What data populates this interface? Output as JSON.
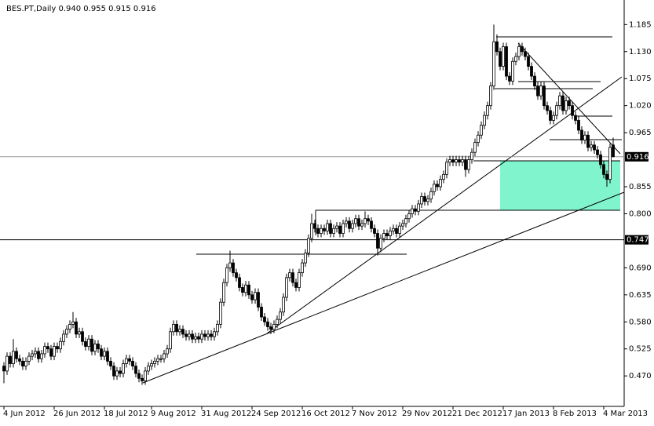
{
  "chart_data": {
    "type": "candlestick",
    "title": "BES.PT,Daily  0.940 0.955 0.915 0.916",
    "up_color": "#ffffff",
    "down_color": "#000000",
    "ylim": [
      0.408,
      1.235
    ],
    "yticks": [
      1.185,
      {
        "value": 1.13,
        "label": "1.130"
      },
      1.075,
      {
        "value": 1.02,
        "label": "1.020"
      },
      0.965,
      0.855,
      {
        "value": 0.8,
        "label": "0.800"
      },
      {
        "value": 0.69,
        "label": "0.690"
      },
      0.635,
      {
        "value": 0.58,
        "label": "0.580"
      },
      0.525,
      {
        "value": 0.47,
        "label": "0.470"
      }
    ],
    "xticks": [
      {
        "value": 0,
        "label": "4 Jun 2012"
      },
      {
        "value": 16,
        "label": "26 Jun 2012"
      },
      {
        "value": 32,
        "label": "18 Jul 2012"
      },
      {
        "value": 47,
        "label": "9 Aug 2012"
      },
      {
        "value": 63,
        "label": "31 Aug 2012"
      },
      {
        "value": 79,
        "label": "24 Sep 2012"
      },
      {
        "value": 95,
        "label": "16 Oct 2012"
      },
      {
        "value": 111,
        "label": "7 Nov 2012"
      },
      {
        "value": 127,
        "label": "29 Nov 2012"
      },
      {
        "value": 143,
        "label": "21 Dec 2012"
      },
      {
        "value": 159,
        "label": "17 Jan 2013"
      },
      {
        "value": 175,
        "label": "8 Feb 2013"
      },
      {
        "value": 191,
        "label": "4 Mar 2013"
      }
    ],
    "price_lines": [
      0.747
    ],
    "bid": 0.916,
    "ohlc": [
      [
        0.49,
        0.498,
        0.455,
        0.48
      ],
      [
        0.48,
        0.518,
        0.472,
        0.51
      ],
      [
        0.51,
        0.518,
        0.487,
        0.495
      ],
      [
        0.495,
        0.545,
        0.487,
        0.52
      ],
      [
        0.52,
        0.528,
        0.497,
        0.505
      ],
      [
        0.505,
        0.513,
        0.492,
        0.5
      ],
      [
        0.5,
        0.508,
        0.482,
        0.49
      ],
      [
        0.49,
        0.508,
        0.482,
        0.5
      ],
      [
        0.5,
        0.518,
        0.492,
        0.51
      ],
      [
        0.51,
        0.523,
        0.502,
        0.515
      ],
      [
        0.515,
        0.528,
        0.507,
        0.52
      ],
      [
        0.52,
        0.528,
        0.497,
        0.505
      ],
      [
        0.505,
        0.523,
        0.497,
        0.515
      ],
      [
        0.515,
        0.538,
        0.507,
        0.53
      ],
      [
        0.53,
        0.538,
        0.517,
        0.525
      ],
      [
        0.525,
        0.533,
        0.502,
        0.51
      ],
      [
        0.51,
        0.538,
        0.502,
        0.53
      ],
      [
        0.53,
        0.538,
        0.517,
        0.525
      ],
      [
        0.525,
        0.548,
        0.517,
        0.54
      ],
      [
        0.54,
        0.563,
        0.532,
        0.555
      ],
      [
        0.555,
        0.573,
        0.547,
        0.565
      ],
      [
        0.565,
        0.583,
        0.557,
        0.575
      ],
      [
        0.575,
        0.6,
        0.567,
        0.58
      ],
      [
        0.58,
        0.588,
        0.547,
        0.555
      ],
      [
        0.555,
        0.568,
        0.547,
        0.56
      ],
      [
        0.56,
        0.568,
        0.532,
        0.54
      ],
      [
        0.54,
        0.548,
        0.522,
        0.53
      ],
      [
        0.53,
        0.553,
        0.522,
        0.545
      ],
      [
        0.545,
        0.553,
        0.512,
        0.52
      ],
      [
        0.52,
        0.543,
        0.512,
        0.535
      ],
      [
        0.535,
        0.543,
        0.517,
        0.525
      ],
      [
        0.525,
        0.533,
        0.502,
        0.51
      ],
      [
        0.51,
        0.528,
        0.502,
        0.52
      ],
      [
        0.52,
        0.528,
        0.492,
        0.5
      ],
      [
        0.5,
        0.508,
        0.482,
        0.49
      ],
      [
        0.49,
        0.498,
        0.462,
        0.47
      ],
      [
        0.47,
        0.488,
        0.462,
        0.48
      ],
      [
        0.48,
        0.488,
        0.467,
        0.475
      ],
      [
        0.475,
        0.503,
        0.467,
        0.495
      ],
      [
        0.495,
        0.513,
        0.487,
        0.505
      ],
      [
        0.505,
        0.513,
        0.492,
        0.5
      ],
      [
        0.5,
        0.508,
        0.482,
        0.49
      ],
      [
        0.49,
        0.498,
        0.467,
        0.475
      ],
      [
        0.475,
        0.483,
        0.457,
        0.465
      ],
      [
        0.465,
        0.473,
        0.452,
        0.46
      ],
      [
        0.46,
        0.488,
        0.452,
        0.48
      ],
      [
        0.48,
        0.498,
        0.472,
        0.49
      ],
      [
        0.49,
        0.503,
        0.482,
        0.495
      ],
      [
        0.495,
        0.508,
        0.487,
        0.5
      ],
      [
        0.5,
        0.513,
        0.492,
        0.505
      ],
      [
        0.505,
        0.513,
        0.497,
        0.505
      ],
      [
        0.505,
        0.523,
        0.497,
        0.515
      ],
      [
        0.515,
        0.533,
        0.507,
        0.525
      ],
      [
        0.525,
        0.568,
        0.517,
        0.56
      ],
      [
        0.56,
        0.583,
        0.552,
        0.575
      ],
      [
        0.575,
        0.583,
        0.552,
        0.56
      ],
      [
        0.56,
        0.573,
        0.552,
        0.565
      ],
      [
        0.565,
        0.573,
        0.547,
        0.555
      ],
      [
        0.555,
        0.563,
        0.542,
        0.55
      ],
      [
        0.55,
        0.563,
        0.542,
        0.555
      ],
      [
        0.555,
        0.563,
        0.537,
        0.545
      ],
      [
        0.545,
        0.558,
        0.537,
        0.55
      ],
      [
        0.55,
        0.558,
        0.537,
        0.545
      ],
      [
        0.545,
        0.563,
        0.537,
        0.555
      ],
      [
        0.555,
        0.563,
        0.542,
        0.55
      ],
      [
        0.55,
        0.563,
        0.542,
        0.555
      ],
      [
        0.555,
        0.563,
        0.542,
        0.55
      ],
      [
        0.55,
        0.568,
        0.542,
        0.56
      ],
      [
        0.56,
        0.583,
        0.552,
        0.575
      ],
      [
        0.575,
        0.628,
        0.567,
        0.62
      ],
      [
        0.62,
        0.668,
        0.612,
        0.66
      ],
      [
        0.66,
        0.698,
        0.652,
        0.69
      ],
      [
        0.69,
        0.725,
        0.682,
        0.7
      ],
      [
        0.7,
        0.708,
        0.672,
        0.68
      ],
      [
        0.68,
        0.688,
        0.662,
        0.67
      ],
      [
        0.67,
        0.678,
        0.642,
        0.65
      ],
      [
        0.65,
        0.658,
        0.632,
        0.64
      ],
      [
        0.64,
        0.663,
        0.632,
        0.655
      ],
      [
        0.655,
        0.663,
        0.627,
        0.635
      ],
      [
        0.635,
        0.643,
        0.617,
        0.625
      ],
      [
        0.625,
        0.648,
        0.617,
        0.64
      ],
      [
        0.64,
        0.648,
        0.602,
        0.61
      ],
      [
        0.61,
        0.618,
        0.582,
        0.59
      ],
      [
        0.59,
        0.598,
        0.572,
        0.58
      ],
      [
        0.58,
        0.588,
        0.562,
        0.57
      ],
      [
        0.57,
        0.578,
        0.555,
        0.565
      ],
      [
        0.565,
        0.583,
        0.557,
        0.575
      ],
      [
        0.575,
        0.593,
        0.567,
        0.585
      ],
      [
        0.585,
        0.608,
        0.577,
        0.6
      ],
      [
        0.6,
        0.638,
        0.592,
        0.63
      ],
      [
        0.63,
        0.678,
        0.622,
        0.67
      ],
      [
        0.67,
        0.688,
        0.662,
        0.68
      ],
      [
        0.68,
        0.688,
        0.652,
        0.66
      ],
      [
        0.66,
        0.668,
        0.642,
        0.65
      ],
      [
        0.65,
        0.688,
        0.642,
        0.68
      ],
      [
        0.68,
        0.708,
        0.672,
        0.7
      ],
      [
        0.7,
        0.728,
        0.692,
        0.72
      ],
      [
        0.72,
        0.758,
        0.712,
        0.75
      ],
      [
        0.75,
        0.8,
        0.742,
        0.78
      ],
      [
        0.78,
        0.788,
        0.762,
        0.77
      ],
      [
        0.77,
        0.778,
        0.752,
        0.76
      ],
      [
        0.76,
        0.778,
        0.752,
        0.77
      ],
      [
        0.77,
        0.778,
        0.757,
        0.765
      ],
      [
        0.765,
        0.788,
        0.757,
        0.78
      ],
      [
        0.78,
        0.788,
        0.752,
        0.76
      ],
      [
        0.76,
        0.778,
        0.752,
        0.77
      ],
      [
        0.77,
        0.783,
        0.762,
        0.775
      ],
      [
        0.775,
        0.783,
        0.752,
        0.76
      ],
      [
        0.76,
        0.788,
        0.752,
        0.78
      ],
      [
        0.78,
        0.793,
        0.772,
        0.785
      ],
      [
        0.785,
        0.793,
        0.762,
        0.77
      ],
      [
        0.77,
        0.788,
        0.762,
        0.78
      ],
      [
        0.78,
        0.798,
        0.772,
        0.79
      ],
      [
        0.79,
        0.798,
        0.767,
        0.775
      ],
      [
        0.775,
        0.788,
        0.767,
        0.78
      ],
      [
        0.78,
        0.805,
        0.772,
        0.79
      ],
      [
        0.79,
        0.798,
        0.777,
        0.785
      ],
      [
        0.785,
        0.793,
        0.762,
        0.77
      ],
      [
        0.77,
        0.778,
        0.752,
        0.76
      ],
      [
        0.76,
        0.768,
        0.715,
        0.73
      ],
      [
        0.73,
        0.758,
        0.722,
        0.75
      ],
      [
        0.75,
        0.768,
        0.742,
        0.76
      ],
      [
        0.76,
        0.768,
        0.747,
        0.755
      ],
      [
        0.755,
        0.773,
        0.747,
        0.765
      ],
      [
        0.765,
        0.778,
        0.757,
        0.77
      ],
      [
        0.77,
        0.778,
        0.752,
        0.76
      ],
      [
        0.76,
        0.783,
        0.752,
        0.775
      ],
      [
        0.775,
        0.788,
        0.767,
        0.78
      ],
      [
        0.78,
        0.798,
        0.772,
        0.79
      ],
      [
        0.79,
        0.808,
        0.782,
        0.8
      ],
      [
        0.8,
        0.818,
        0.792,
        0.81
      ],
      [
        0.81,
        0.818,
        0.797,
        0.805
      ],
      [
        0.805,
        0.828,
        0.797,
        0.82
      ],
      [
        0.82,
        0.843,
        0.812,
        0.835
      ],
      [
        0.835,
        0.843,
        0.817,
        0.825
      ],
      [
        0.825,
        0.838,
        0.817,
        0.83
      ],
      [
        0.83,
        0.853,
        0.822,
        0.845
      ],
      [
        0.845,
        0.868,
        0.837,
        0.86
      ],
      [
        0.86,
        0.868,
        0.847,
        0.855
      ],
      [
        0.855,
        0.878,
        0.847,
        0.87
      ],
      [
        0.87,
        0.888,
        0.862,
        0.88
      ],
      [
        0.88,
        0.913,
        0.872,
        0.905
      ],
      [
        0.905,
        0.918,
        0.897,
        0.91
      ],
      [
        0.91,
        0.918,
        0.897,
        0.905
      ],
      [
        0.905,
        0.918,
        0.897,
        0.91
      ],
      [
        0.91,
        0.918,
        0.897,
        0.905
      ],
      [
        0.905,
        0.918,
        0.897,
        0.91
      ],
      [
        0.91,
        0.918,
        0.875,
        0.89
      ],
      [
        0.89,
        0.918,
        0.882,
        0.91
      ],
      [
        0.91,
        0.933,
        0.902,
        0.925
      ],
      [
        0.925,
        0.953,
        0.917,
        0.945
      ],
      [
        0.945,
        0.968,
        0.937,
        0.96
      ],
      [
        0.96,
        0.988,
        0.952,
        0.98
      ],
      [
        0.98,
        1.008,
        0.972,
        1.0
      ],
      [
        1.0,
        1.028,
        0.992,
        1.02
      ],
      [
        1.02,
        1.068,
        1.012,
        1.06
      ],
      [
        1.06,
        1.185,
        1.052,
        1.15
      ],
      [
        1.15,
        1.165,
        1.122,
        1.13
      ],
      [
        1.13,
        1.138,
        1.092,
        1.1
      ],
      [
        1.1,
        1.148,
        1.092,
        1.14
      ],
      [
        1.14,
        1.148,
        1.072,
        1.08
      ],
      [
        1.08,
        1.088,
        1.062,
        1.07
      ],
      [
        1.07,
        1.118,
        1.062,
        1.11
      ],
      [
        1.11,
        1.128,
        1.102,
        1.12
      ],
      [
        1.12,
        1.148,
        1.112,
        1.14
      ],
      [
        1.14,
        1.148,
        1.122,
        1.13
      ],
      [
        1.13,
        1.138,
        1.112,
        1.12
      ],
      [
        1.12,
        1.128,
        1.092,
        1.1
      ],
      [
        1.1,
        1.108,
        1.072,
        1.08
      ],
      [
        1.08,
        1.088,
        1.052,
        1.06
      ],
      [
        1.06,
        1.068,
        1.032,
        1.04
      ],
      [
        1.04,
        1.068,
        1.032,
        1.06
      ],
      [
        1.06,
        1.068,
        1.012,
        1.02
      ],
      [
        1.02,
        1.028,
        1.002,
        1.01
      ],
      [
        1.01,
        1.018,
        0.982,
        0.99
      ],
      [
        0.99,
        1.008,
        0.982,
        1.0
      ],
      [
        1.0,
        1.028,
        0.992,
        1.02
      ],
      [
        1.02,
        1.048,
        1.012,
        1.04
      ],
      [
        1.04,
        1.048,
        1.002,
        1.01
      ],
      [
        1.01,
        1.038,
        1.002,
        1.03
      ],
      [
        1.03,
        1.038,
        1.012,
        1.02
      ],
      [
        1.02,
        1.028,
        0.992,
        1.0
      ],
      [
        1.0,
        1.008,
        0.982,
        0.99
      ],
      [
        0.99,
        0.998,
        0.962,
        0.97
      ],
      [
        0.97,
        0.978,
        0.942,
        0.95
      ],
      [
        0.95,
        0.968,
        0.942,
        0.96
      ],
      [
        0.96,
        0.968,
        0.927,
        0.935
      ],
      [
        0.935,
        0.948,
        0.927,
        0.94
      ],
      [
        0.94,
        0.948,
        0.922,
        0.93
      ],
      [
        0.93,
        0.938,
        0.912,
        0.92
      ],
      [
        0.92,
        0.928,
        0.892,
        0.9
      ],
      [
        0.9,
        0.908,
        0.872,
        0.88
      ],
      [
        0.88,
        0.888,
        0.855,
        0.87
      ],
      [
        0.87,
        0.943,
        0.862,
        0.935
      ],
      [
        0.94,
        0.955,
        0.915,
        0.916
      ]
    ]
  }
}
